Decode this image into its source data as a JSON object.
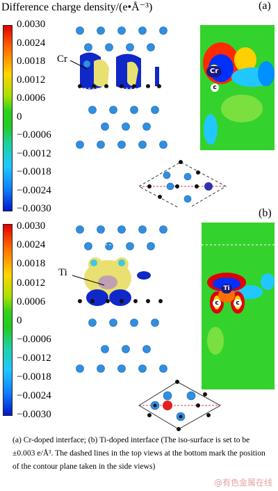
{
  "title": "Difference charge density/(e•Å⁻³)",
  "colorbar_ticks": [
    "0.0030",
    "0.0024",
    "0.0018",
    "0.0012",
    "0.0006",
    "0",
    "−0.0006",
    "−0.0012",
    "−0.0018",
    "−0.0024",
    "−0.0030"
  ],
  "panel_a": {
    "label": "(a)",
    "dopant": "Cr",
    "contour_dopant": "Cr",
    "contour_c": "c"
  },
  "panel_b": {
    "label": "(b)",
    "dopant": "Ti",
    "contour_dopant": "Ti",
    "contour_c": "c"
  },
  "caption": "(a) Cr-doped interface; (b) Ti-doped interface (The iso-surface is set to be ±0.003 e/Å³. The dashed lines in the top views at the bottom mark the position of the contour plane taken in the side views)",
  "watermark": "@有色金属在线"
}
